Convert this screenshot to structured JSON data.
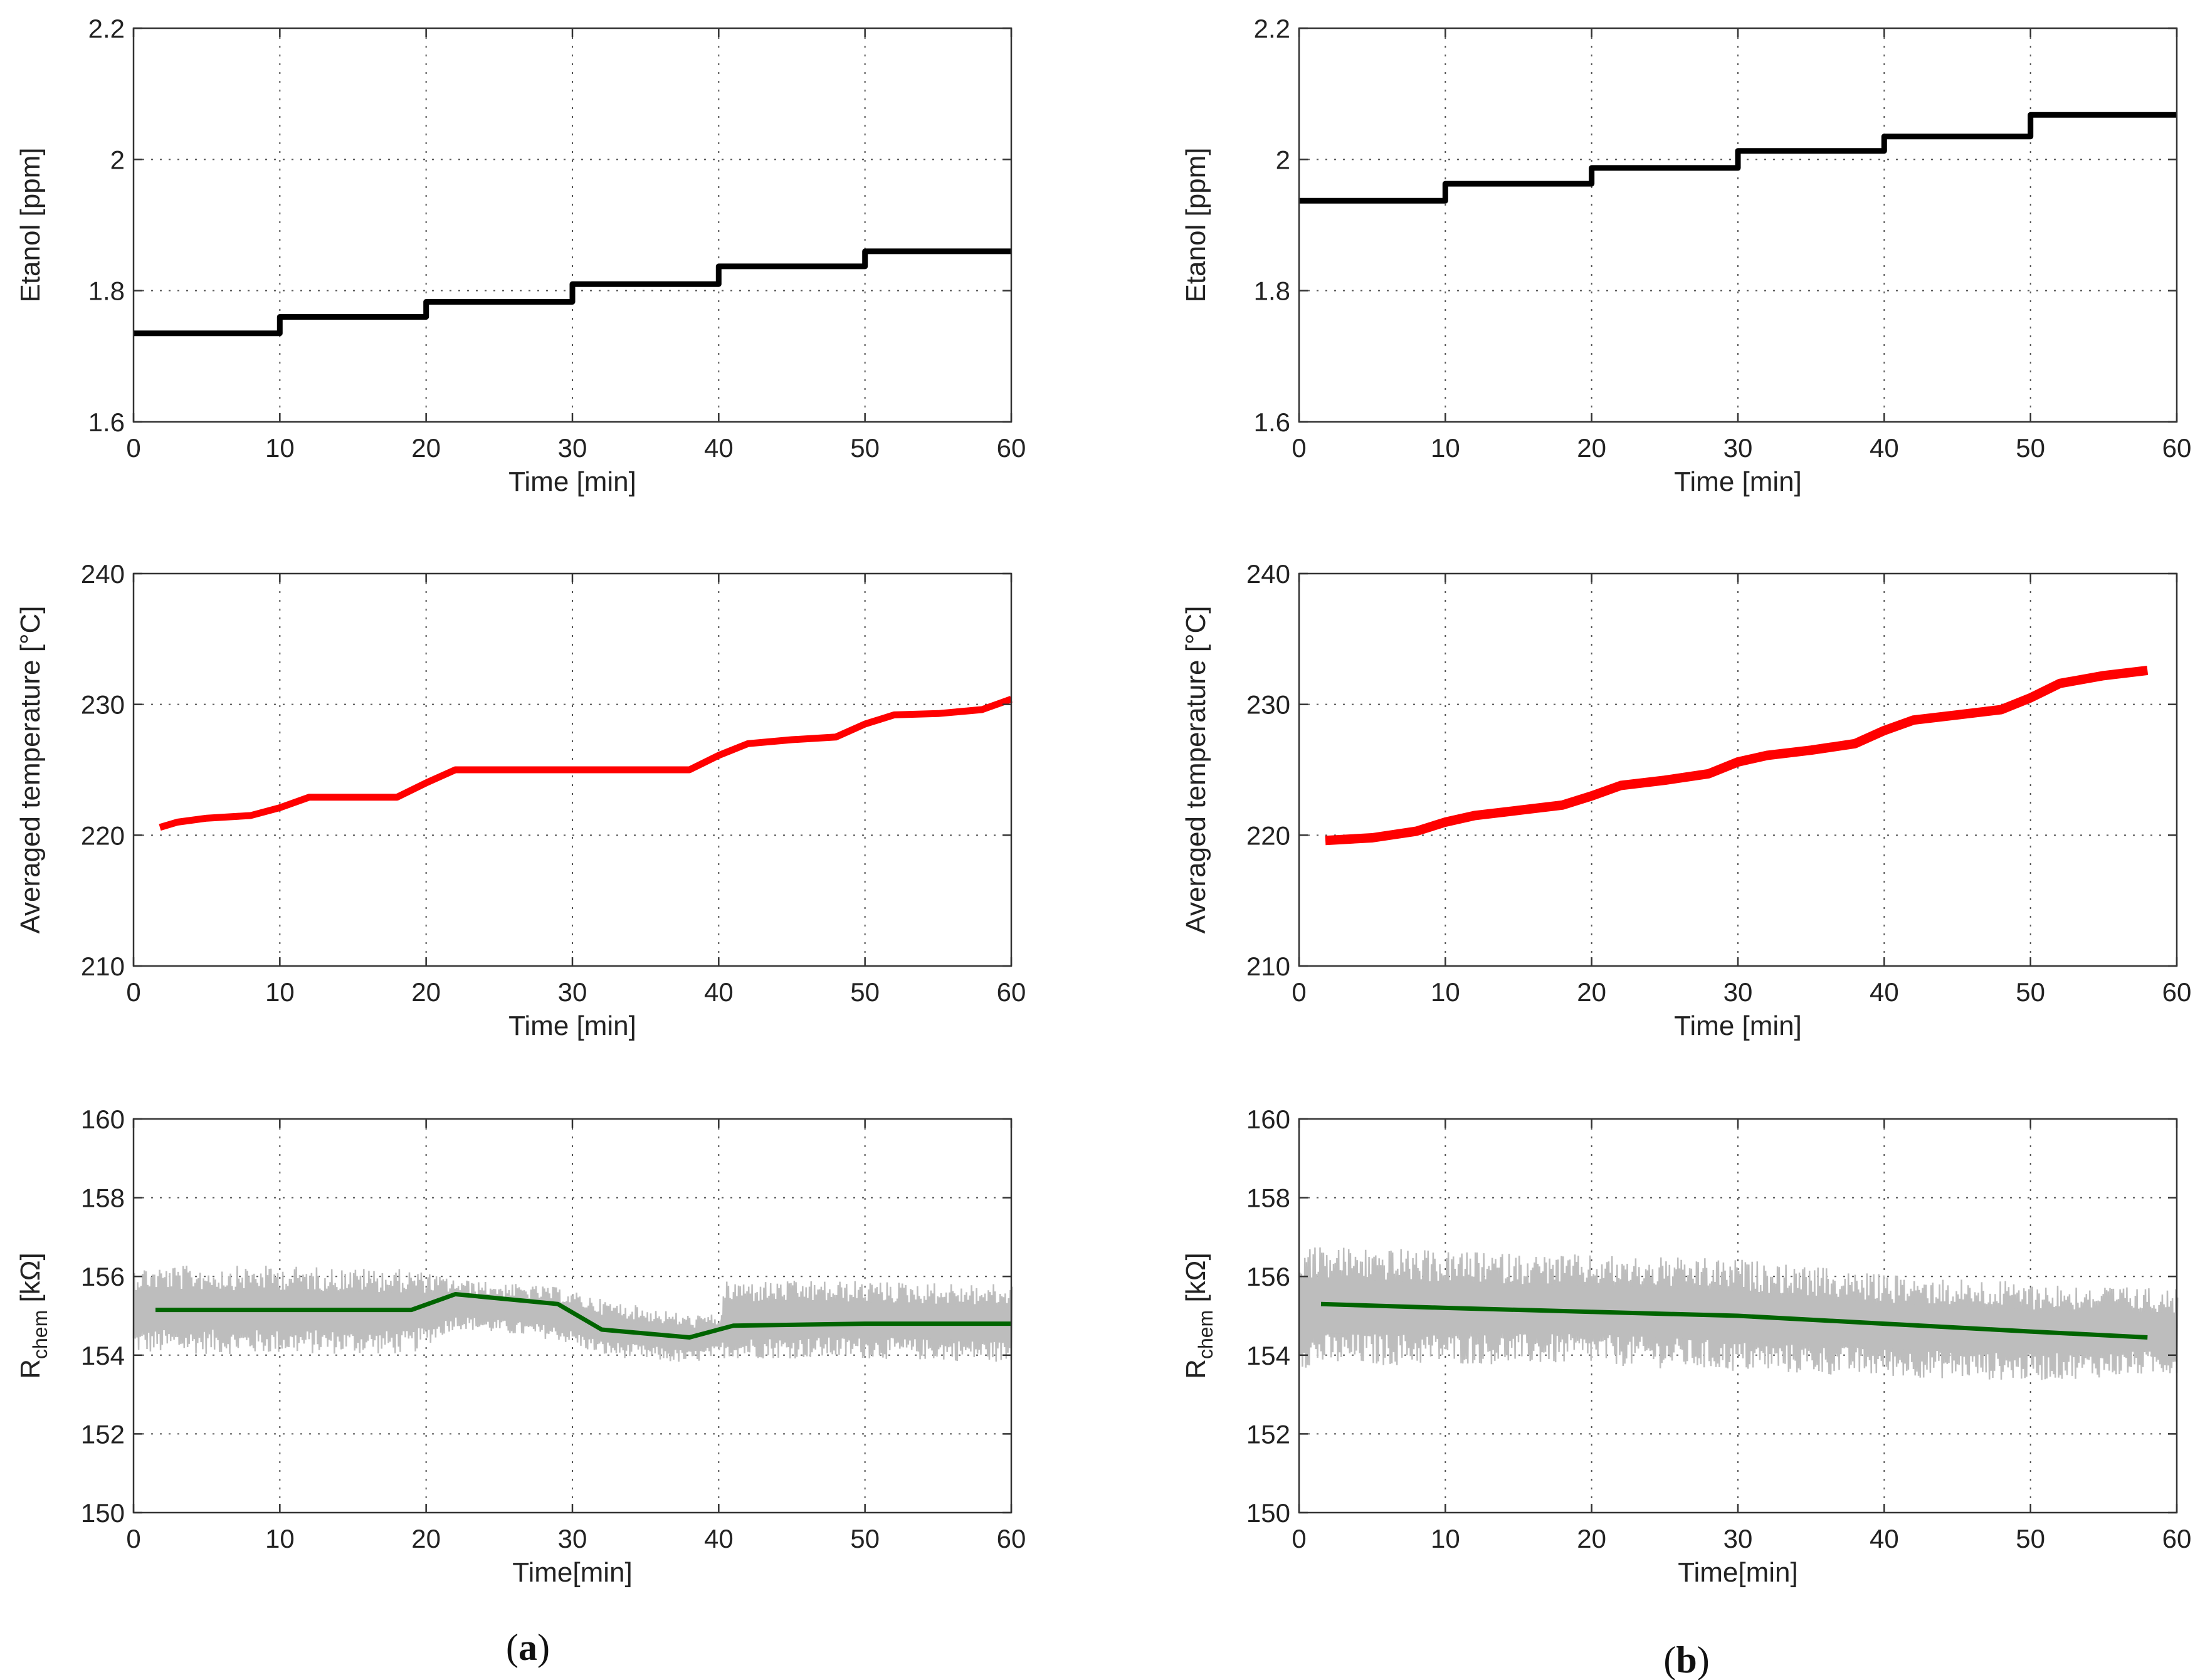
{
  "chart_data": [
    {
      "id": "a1",
      "panel": "a",
      "type": "line",
      "xlabel": "Time [min]",
      "ylabel": "Etanol [ppm]",
      "xlim": [
        0,
        60
      ],
      "ylim": [
        1.6,
        2.2
      ],
      "xticks": [
        0,
        10,
        20,
        30,
        40,
        50,
        60
      ],
      "yticks": [
        1.6,
        1.8,
        2.0,
        2.2
      ],
      "ytick_labels": [
        "1.6",
        "1.8",
        "2",
        "2.2"
      ],
      "series": [
        {
          "name": "Etanol",
          "color": "#000000",
          "style": "step",
          "x": [
            0,
            10,
            20,
            30,
            40,
            50,
            60
          ],
          "y": [
            1.735,
            1.76,
            1.783,
            1.81,
            1.837,
            1.86,
            1.86
          ]
        }
      ]
    },
    {
      "id": "b1",
      "panel": "b",
      "type": "line",
      "xlabel": "Time [min]",
      "ylabel": "Etanol [ppm]",
      "xlim": [
        0,
        60
      ],
      "ylim": [
        1.6,
        2.2
      ],
      "xticks": [
        0,
        10,
        20,
        30,
        40,
        50,
        60
      ],
      "yticks": [
        1.6,
        1.8,
        2.0,
        2.2
      ],
      "ytick_labels": [
        "1.6",
        "1.8",
        "2",
        "2.2"
      ],
      "series": [
        {
          "name": "Etanol",
          "color": "#000000",
          "style": "step",
          "x": [
            0,
            10,
            20,
            30,
            40,
            50,
            60
          ],
          "y": [
            1.937,
            1.963,
            1.987,
            2.013,
            2.035,
            2.068,
            2.068
          ]
        }
      ]
    },
    {
      "id": "a2",
      "panel": "a",
      "type": "line",
      "xlabel": "Time [min]",
      "ylabel": "Averaged temperature [°C]",
      "xlim": [
        0,
        60
      ],
      "ylim": [
        210,
        240
      ],
      "xticks": [
        0,
        10,
        20,
        30,
        40,
        50,
        60
      ],
      "yticks": [
        210,
        220,
        230,
        240
      ],
      "ytick_labels": [
        "210",
        "220",
        "230",
        "240"
      ],
      "series": [
        {
          "name": "Averaged temperature",
          "color": "#ff0000",
          "style": "line",
          "x": [
            1.8,
            3,
            5,
            8,
            10,
            12,
            18,
            20,
            22,
            30,
            38,
            40,
            42,
            45,
            48,
            50,
            52,
            55,
            58,
            60
          ],
          "y": [
            220.6,
            221.0,
            221.3,
            221.5,
            222.1,
            222.9,
            222.9,
            224.0,
            225.0,
            225.0,
            225.0,
            226.1,
            227.0,
            227.3,
            227.5,
            228.5,
            229.2,
            229.3,
            229.6,
            230.4
          ]
        }
      ]
    },
    {
      "id": "b2",
      "panel": "b",
      "type": "line",
      "xlabel": "Time [min]",
      "ylabel": "Averaged temperature [°C]",
      "xlim": [
        0,
        60
      ],
      "ylim": [
        210,
        240
      ],
      "xticks": [
        0,
        10,
        20,
        30,
        40,
        50,
        60
      ],
      "yticks": [
        210,
        220,
        230,
        240
      ],
      "ytick_labels": [
        "210",
        "220",
        "230",
        "240"
      ],
      "series": [
        {
          "name": "Averaged temperature",
          "color": "#ff0000",
          "style": "line",
          "x": [
            1.8,
            5,
            8,
            10,
            12,
            15,
            18,
            20,
            22,
            25,
            28,
            30,
            32,
            35,
            38,
            40,
            42,
            45,
            48,
            50,
            52,
            55,
            58
          ],
          "y": [
            219.6,
            219.8,
            220.3,
            221.0,
            221.5,
            221.9,
            222.3,
            223.0,
            223.8,
            224.2,
            224.7,
            225.6,
            226.1,
            226.5,
            227.0,
            228.0,
            228.8,
            229.2,
            229.6,
            230.5,
            231.6,
            232.2,
            232.6
          ]
        }
      ]
    },
    {
      "id": "a3",
      "panel": "a",
      "type": "line",
      "xlabel": "Time[min]",
      "ylabel_main": "R",
      "ylabel_sub": "chem",
      "ylabel_unit": " [kΩ]",
      "xlim": [
        0,
        60
      ],
      "ylim": [
        150,
        160
      ],
      "xticks": [
        0,
        10,
        20,
        30,
        40,
        50,
        60
      ],
      "yticks": [
        150,
        152,
        154,
        156,
        158,
        160
      ],
      "ytick_labels": [
        "150",
        "152",
        "154",
        "156",
        "158",
        "160"
      ],
      "band": {
        "name": "raw R_chem",
        "color": "#bdbdbd",
        "x": [
          0,
          10,
          19,
          22,
          29,
          32,
          38,
          40,
          40.5,
          50,
          60
        ],
        "lo": [
          153.9,
          153.9,
          153.9,
          154.6,
          154.3,
          153.9,
          153.7,
          153.9,
          153.8,
          153.8,
          153.7
        ],
        "hi": [
          156.4,
          156.4,
          156.3,
          156.0,
          155.8,
          155.5,
          155.1,
          155.1,
          156.0,
          156.0,
          155.9
        ]
      },
      "series": [
        {
          "name": "R_chem (filtered)",
          "color": "#006400",
          "style": "line",
          "x": [
            1.5,
            10,
            19,
            22,
            29,
            32,
            38,
            41,
            50,
            60
          ],
          "y": [
            155.15,
            155.15,
            155.15,
            155.55,
            155.3,
            154.65,
            154.45,
            154.75,
            154.8,
            154.8
          ]
        }
      ]
    },
    {
      "id": "b3",
      "panel": "b",
      "type": "line",
      "xlabel": "Time[min]",
      "ylabel_main": "R",
      "ylabel_sub": "chem",
      "ylabel_unit": " [kΩ]",
      "xlim": [
        0,
        60
      ],
      "ylim": [
        150,
        160
      ],
      "xticks": [
        0,
        10,
        20,
        30,
        40,
        50,
        60
      ],
      "yticks": [
        150,
        152,
        154,
        156,
        158,
        160
      ],
      "ytick_labels": [
        "150",
        "152",
        "154",
        "156",
        "158",
        "160"
      ],
      "band": {
        "name": "raw R_chem",
        "color": "#bdbdbd",
        "x": [
          0,
          10,
          20,
          30,
          40,
          50,
          60
        ],
        "lo": [
          153.5,
          153.6,
          153.6,
          153.4,
          153.3,
          153.2,
          153.4
        ],
        "hi": [
          157.0,
          156.8,
          156.7,
          156.6,
          156.2,
          156.0,
          155.8
        ]
      },
      "series": [
        {
          "name": "R_chem (filtered)",
          "color": "#006400",
          "style": "line",
          "x": [
            1.5,
            10,
            20,
            30,
            40,
            50,
            58
          ],
          "y": [
            155.3,
            155.2,
            155.1,
            155.0,
            154.8,
            154.6,
            154.45
          ]
        }
      ]
    }
  ],
  "panel_labels": {
    "a": "a",
    "b": "b"
  }
}
